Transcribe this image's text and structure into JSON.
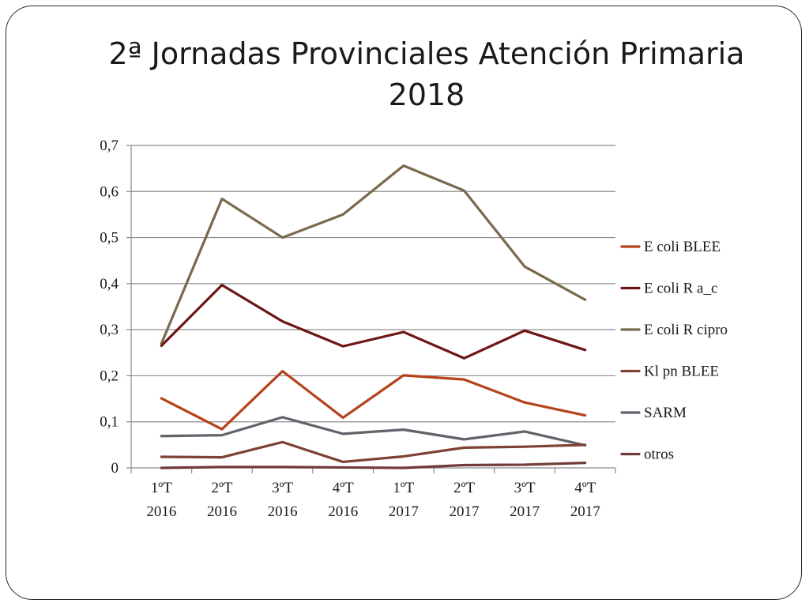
{
  "title": {
    "line1": "2ª Jornadas Provinciales Atención Primaria",
    "line2": "2018"
  },
  "chart_data": {
    "type": "line",
    "title": "2ª Jornadas Provinciales Atención Primaria 2018",
    "xlabel": "",
    "ylabel": "",
    "categories": [
      [
        "1ºT",
        "2016"
      ],
      [
        "2ºT",
        "2016"
      ],
      [
        "3ºT",
        "2016"
      ],
      [
        "4ºT",
        "2016"
      ],
      [
        "1ºT",
        "2017"
      ],
      [
        "2ºT",
        "2017"
      ],
      [
        "3ºT",
        "2017"
      ],
      [
        "4ºT",
        "2017"
      ]
    ],
    "ylim": [
      0,
      0.7
    ],
    "yticks": [
      {
        "value": 0,
        "label": "0"
      },
      {
        "value": 0.1,
        "label": "0,1"
      },
      {
        "value": 0.2,
        "label": "0,2"
      },
      {
        "value": 0.3,
        "label": "0,3"
      },
      {
        "value": 0.4,
        "label": "0,4"
      },
      {
        "value": 0.5,
        "label": "0,5"
      },
      {
        "value": 0.6,
        "label": "0,6"
      },
      {
        "value": 0.7,
        "label": "0,7"
      }
    ],
    "grid": "horizontal",
    "legend_position": "right",
    "series": [
      {
        "name": "E coli BLEE",
        "color": "#b5421a",
        "values": [
          0.151,
          0.084,
          0.21,
          0.109,
          0.201,
          0.192,
          0.142,
          0.114
        ]
      },
      {
        "name": "E coli R a_c",
        "color": "#6e1616",
        "values": [
          0.265,
          0.397,
          0.318,
          0.264,
          0.295,
          0.238,
          0.298,
          0.256
        ]
      },
      {
        "name": "E coli R cipro",
        "color": "#7a6a4c",
        "values": [
          0.27,
          0.584,
          0.5,
          0.55,
          0.656,
          0.602,
          0.437,
          0.365
        ]
      },
      {
        "name": "Kl pn BLEE",
        "color": "#7d4234",
        "values": [
          0.024,
          0.023,
          0.056,
          0.013,
          0.025,
          0.044,
          0.046,
          0.05
        ]
      },
      {
        "name": "SARM",
        "color": "#63616a",
        "values": [
          0.069,
          0.071,
          0.11,
          0.074,
          0.083,
          0.062,
          0.079,
          0.049
        ]
      },
      {
        "name": "otros",
        "color": "#713c38",
        "values": [
          0.0,
          0.002,
          0.002,
          0.001,
          0.0,
          0.006,
          0.007,
          0.011
        ]
      }
    ]
  }
}
